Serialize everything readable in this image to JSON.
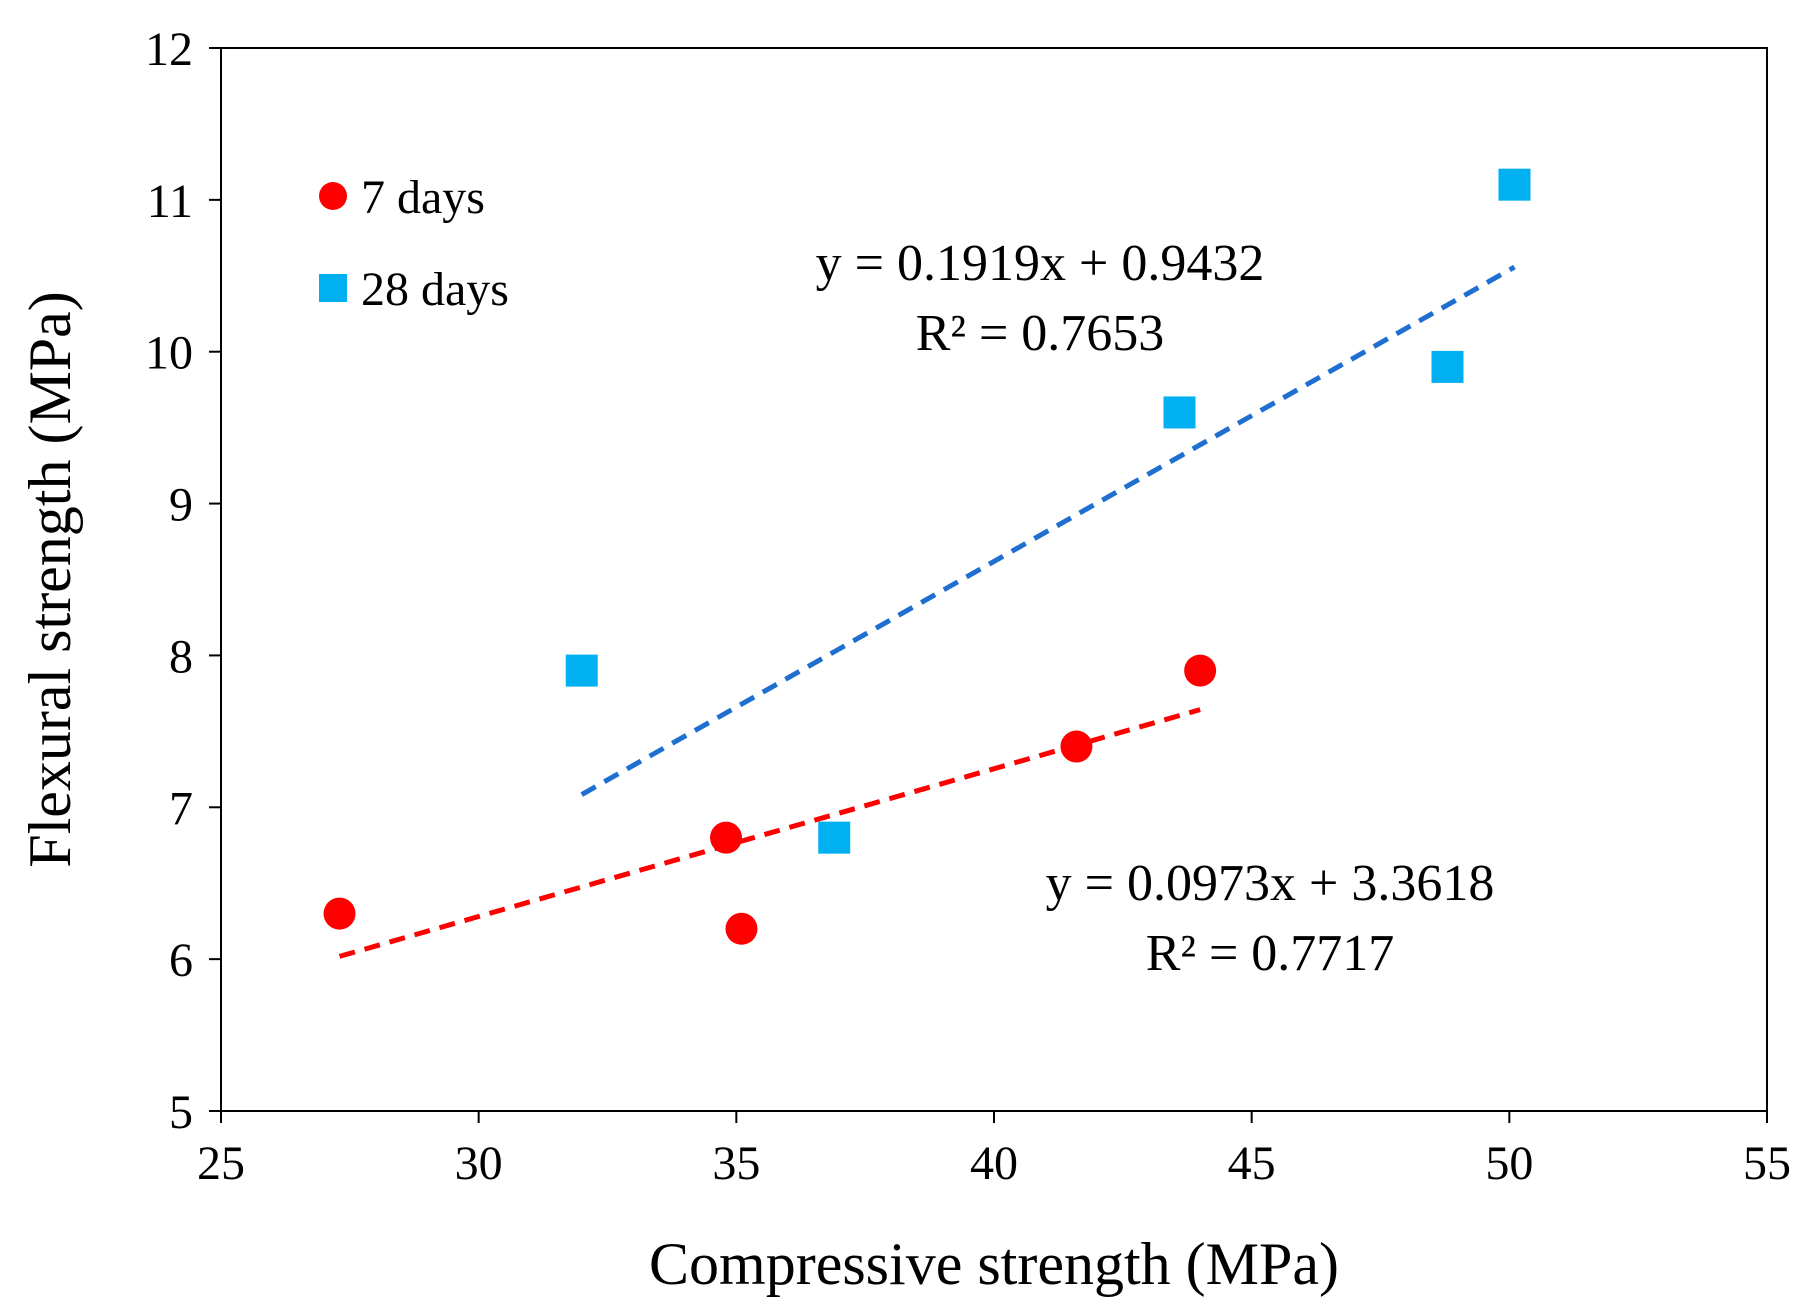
{
  "chart_data": {
    "type": "scatter",
    "title": "",
    "xlabel": "Compressive strength (MPa)",
    "ylabel": "Flexural strength (MPa)",
    "xlim": [
      25,
      55
    ],
    "ylim": [
      5,
      12
    ],
    "xticks": [
      25,
      30,
      35,
      40,
      45,
      50,
      55
    ],
    "yticks": [
      5,
      6,
      7,
      8,
      9,
      10,
      11,
      12
    ],
    "grid": false,
    "legend_position": "top-left",
    "series": [
      {
        "name": "7 days",
        "marker": "circle",
        "color": "#ff0000",
        "points": [
          {
            "x": 27.3,
            "y": 6.3
          },
          {
            "x": 34.8,
            "y": 6.8
          },
          {
            "x": 35.1,
            "y": 6.2
          },
          {
            "x": 41.6,
            "y": 7.4
          },
          {
            "x": 44.0,
            "y": 7.9
          }
        ],
        "trendline": {
          "slope": 0.0973,
          "intercept": 3.3618,
          "x_range": [
            27.3,
            44.0
          ],
          "color": "#ff0000",
          "style": "dashed",
          "equation": "y = 0.0973x + 3.3618",
          "r2": "R² = 0.7717"
        }
      },
      {
        "name": "28 days",
        "marker": "square",
        "color": "#00b0f0",
        "points": [
          {
            "x": 32.0,
            "y": 7.9
          },
          {
            "x": 36.9,
            "y": 6.8
          },
          {
            "x": 43.6,
            "y": 9.6
          },
          {
            "x": 48.8,
            "y": 9.9
          },
          {
            "x": 50.1,
            "y": 11.1
          }
        ],
        "trendline": {
          "slope": 0.1919,
          "intercept": 0.9432,
          "x_range": [
            32.0,
            50.1
          ],
          "color": "#1f6fd1",
          "style": "dashed",
          "equation": "y = 0.1919x + 0.9432",
          "r2": "R² = 0.7653"
        }
      }
    ]
  }
}
